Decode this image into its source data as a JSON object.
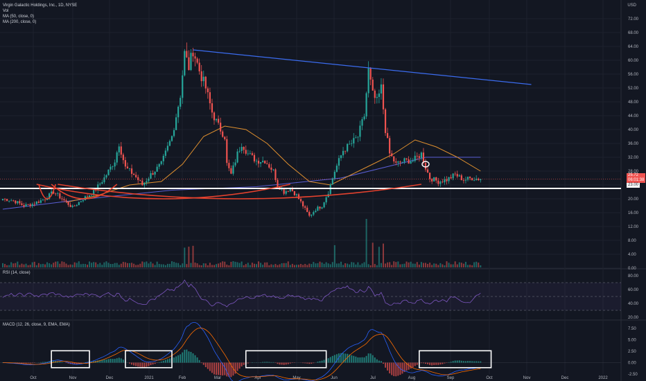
{
  "legend": {
    "title": "Virgin Galactic Holdings, Inc., 1D, NYSE",
    "vol": "Vol",
    "ma50": "MA (50, close, 0)",
    "ma200": "MA (200, close, 0)"
  },
  "currency": "USD",
  "tags": {
    "price": "25.72",
    "countdown": "06:01:38",
    "level": "23.00"
  },
  "rsi_label": "RSI (14, close)",
  "macd_label": "MACD (12, 26, close, 9, EMA, EMA)",
  "colors": {
    "up": "#26a69a",
    "down": "#ef5350",
    "ma50": "#e0902f",
    "ma200": "#5b5fd6",
    "trend": "#3b6cf0",
    "annot": "#e5422e",
    "rsi": "#7e57c2",
    "macd": "#2962ff",
    "signal": "#ff6d00"
  },
  "chart_data": {
    "type": "candlestick",
    "price_axis": {
      "ylim": [
        0,
        76
      ],
      "ticks": [
        "72.00",
        "68.00",
        "64.00",
        "60.00",
        "56.00",
        "52.00",
        "48.00",
        "44.00",
        "40.00",
        "36.00",
        "32.00",
        "28.00",
        "24.00",
        "20.00",
        "16.00",
        "12.00",
        "8.00",
        "4.00",
        "0.00"
      ]
    },
    "rsi_axis": {
      "ylim": [
        20,
        80
      ],
      "ticks": [
        "80.00",
        "60.00",
        "40.00",
        "20.00"
      ],
      "bands": [
        70,
        30
      ]
    },
    "macd_axis": {
      "ylim": [
        -2.5,
        7.5
      ],
      "ticks": [
        "7.50",
        "5.00",
        "2.50",
        "0.00",
        "-2.50"
      ]
    },
    "x_labels": [
      "Oct",
      "Nov",
      "Dec",
      "2021",
      "Feb",
      "Mar",
      "Apr",
      "May",
      "Jun",
      "Jul",
      "Aug",
      "Sep",
      "Oct",
      "Nov",
      "Dec",
      "2022"
    ],
    "price_path": [
      [
        0,
        20
      ],
      [
        5,
        19.5
      ],
      [
        10,
        18
      ],
      [
        14,
        18.5
      ],
      [
        20,
        20
      ],
      [
        24,
        22
      ],
      [
        28,
        20
      ],
      [
        33,
        17.5
      ],
      [
        38,
        20
      ],
      [
        43,
        22
      ],
      [
        48,
        26
      ],
      [
        53,
        31
      ],
      [
        55,
        36
      ],
      [
        58,
        29
      ],
      [
        62,
        27
      ],
      [
        66,
        24
      ],
      [
        70,
        27
      ],
      [
        75,
        30
      ],
      [
        80,
        38
      ],
      [
        84,
        50
      ],
      [
        86,
        62
      ],
      [
        88,
        58
      ],
      [
        90,
        63
      ],
      [
        93,
        57
      ],
      [
        96,
        52
      ],
      [
        99,
        45
      ],
      [
        102,
        41
      ],
      [
        105,
        38
      ],
      [
        106,
        30
      ],
      [
        108,
        27
      ],
      [
        111,
        33
      ],
      [
        113,
        36
      ],
      [
        116,
        33
      ],
      [
        120,
        31
      ],
      [
        124,
        31
      ],
      [
        128,
        28
      ],
      [
        130,
        24
      ],
      [
        133,
        22
      ],
      [
        136,
        23
      ],
      [
        139,
        21
      ],
      [
        142,
        18
      ],
      [
        145,
        15
      ],
      [
        148,
        17
      ],
      [
        151,
        18
      ],
      [
        154,
        22
      ],
      [
        157,
        28
      ],
      [
        161,
        34
      ],
      [
        165,
        36
      ],
      [
        168,
        38
      ],
      [
        171,
        44
      ],
      [
        173,
        57
      ],
      [
        175,
        50
      ],
      [
        177,
        48
      ],
      [
        179,
        52
      ],
      [
        181,
        40
      ],
      [
        183,
        33
      ],
      [
        186,
        30
      ],
      [
        190,
        31
      ],
      [
        194,
        31
      ],
      [
        198,
        33
      ],
      [
        200,
        29
      ],
      [
        202,
        26
      ],
      [
        206,
        25
      ],
      [
        210,
        25.5
      ],
      [
        214,
        27
      ],
      [
        218,
        25.5
      ],
      [
        222,
        26
      ],
      [
        226,
        25.7
      ]
    ],
    "ma50_path": [
      [
        30,
        19
      ],
      [
        45,
        21
      ],
      [
        60,
        24
      ],
      [
        75,
        25
      ],
      [
        85,
        30
      ],
      [
        95,
        38
      ],
      [
        105,
        41
      ],
      [
        115,
        40
      ],
      [
        125,
        36
      ],
      [
        135,
        30
      ],
      [
        145,
        25
      ],
      [
        155,
        24
      ],
      [
        165,
        27
      ],
      [
        175,
        30
      ],
      [
        185,
        33
      ],
      [
        195,
        37
      ],
      [
        205,
        35
      ],
      [
        215,
        32
      ],
      [
        226,
        28
      ]
    ],
    "ma200_path": [
      [
        0,
        17
      ],
      [
        40,
        20
      ],
      [
        80,
        22.5
      ],
      [
        120,
        23.5
      ],
      [
        160,
        26
      ],
      [
        200,
        32
      ],
      [
        226,
        32
      ]
    ],
    "trendline": {
      "from": [
        90,
        63
      ],
      "to": [
        250,
        53
      ]
    },
    "support_level": 23.0,
    "annotation_curves": [
      [
        25,
        17
      ],
      [
        54,
        23
      ],
      [
        136,
        16
      ],
      [
        198,
        26
      ]
    ],
    "annotation_circle": [
      200,
      30
    ],
    "macd_boxes": [
      [
        23,
        41
      ],
      [
        58,
        80
      ],
      [
        115,
        153
      ],
      [
        197,
        231
      ]
    ],
    "n_bars": 227,
    "last_price": 25.72
  }
}
